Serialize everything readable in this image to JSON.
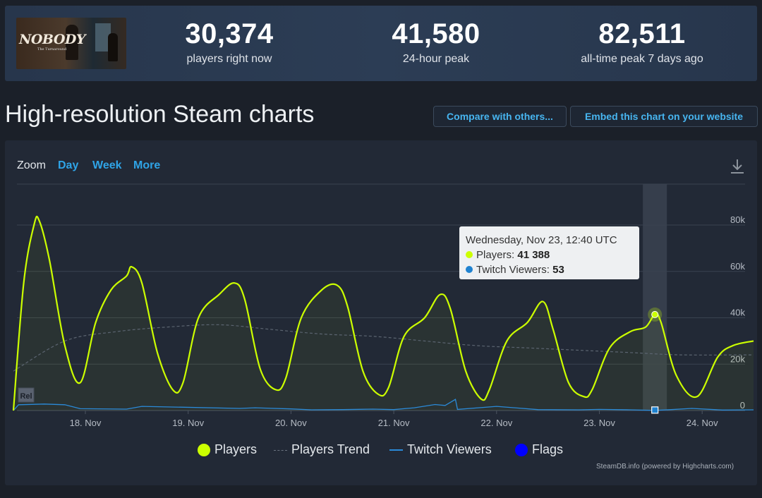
{
  "header": {
    "game_logo_text": "NOBODY",
    "game_logo_subtitle": "The Turnaround",
    "stats": [
      {
        "value": "30,374",
        "label": "players right now"
      },
      {
        "value": "41,580",
        "label": "24-hour peak"
      },
      {
        "value": "82,511",
        "label": "all-time peak 7 days ago"
      }
    ]
  },
  "section": {
    "title": "High-resolution Steam charts",
    "compare_button": "Compare with others...",
    "embed_button": "Embed this chart on your website"
  },
  "zoom": {
    "label": "Zoom",
    "options": [
      "Day",
      "Week",
      "More"
    ]
  },
  "tooltip": {
    "title": "Wednesday, Nov 23, 12:40 UTC",
    "players_label": "Players:",
    "players_value": "41 388",
    "twitch_label": "Twitch Viewers:",
    "twitch_value": "53"
  },
  "flag_label": "Rel",
  "legend": [
    {
      "name": "Players",
      "symbol": "circle"
    },
    {
      "name": "Players Trend",
      "symbol": "dash"
    },
    {
      "name": "Twitch Viewers",
      "symbol": "line"
    },
    {
      "name": "Flags",
      "symbol": "circle"
    }
  ],
  "credits": "SteamDB.info (powered by Highcharts.com)",
  "colors": {
    "players": "#ccff00",
    "trend": "#5b6470",
    "twitch": "#2a8ad8",
    "flags": "#0000ff",
    "highlight_band": "#3a4250"
  },
  "icons": {
    "download": "download-icon"
  },
  "chart_data": {
    "type": "line",
    "x_unit": "date (Nov 2022, UTC)",
    "x_ticks": [
      "18. Nov",
      "19. Nov",
      "20. Nov",
      "21. Nov",
      "22. Nov",
      "23. Nov",
      "24. Nov"
    ],
    "y_ticks": [
      "0",
      "20k",
      "40k",
      "60k",
      "80k"
    ],
    "ylim": [
      0,
      90000
    ],
    "xlim_days": [
      17.3,
      24.5
    ],
    "legend_position": "bottom",
    "highlight": {
      "x_day": 23.54,
      "players": 41388,
      "twitch": 53
    },
    "series": [
      {
        "name": "Players",
        "x_day": [
          17.3,
          17.4,
          17.5,
          17.55,
          17.65,
          17.8,
          17.95,
          18.1,
          18.25,
          18.4,
          18.45,
          18.55,
          18.7,
          18.85,
          18.95,
          19.1,
          19.3,
          19.45,
          19.55,
          19.7,
          19.85,
          19.95,
          20.1,
          20.3,
          20.45,
          20.55,
          20.7,
          20.85,
          20.95,
          21.1,
          21.3,
          21.45,
          21.55,
          21.7,
          21.85,
          21.93,
          22.1,
          22.3,
          22.45,
          22.55,
          22.7,
          22.85,
          22.93,
          23.1,
          23.3,
          23.45,
          23.54,
          23.6,
          23.75,
          23.95,
          24.15,
          24.3,
          24.5
        ],
        "values": [
          0,
          55000,
          80000,
          82000,
          65000,
          28000,
          12000,
          38000,
          52000,
          58000,
          62000,
          55000,
          25000,
          9000,
          12000,
          40000,
          50000,
          55000,
          48000,
          18000,
          9000,
          14000,
          40000,
          52000,
          54000,
          45000,
          17000,
          7000,
          10000,
          32000,
          40000,
          50000,
          44000,
          17000,
          5000,
          9000,
          30000,
          38000,
          47000,
          35000,
          12000,
          6000,
          9000,
          27000,
          34000,
          36000,
          41388,
          38000,
          15000,
          6000,
          23000,
          28000,
          30000
        ]
      },
      {
        "name": "Players Trend",
        "x_day": [
          17.3,
          17.8,
          18.3,
          18.8,
          19.3,
          19.8,
          20.3,
          20.8,
          21.3,
          21.8,
          22.3,
          22.8,
          23.3,
          23.8,
          24.5
        ],
        "values": [
          17000,
          30000,
          34000,
          36000,
          37000,
          35000,
          33000,
          32000,
          30000,
          28000,
          27000,
          26000,
          25000,
          24000,
          24000
        ]
      },
      {
        "name": "Twitch Viewers",
        "x_day": [
          17.3,
          17.35,
          17.6,
          17.8,
          17.95,
          18.4,
          18.55,
          19.5,
          19.65,
          20.0,
          20.2,
          20.5,
          20.8,
          21.0,
          21.2,
          21.4,
          21.5,
          21.6,
          21.62,
          22.0,
          22.2,
          22.4,
          22.8,
          23.0,
          23.3,
          23.54,
          23.7,
          23.9,
          24.2,
          24.5
        ],
        "values": [
          0,
          2500,
          2800,
          2500,
          800,
          600,
          1800,
          900,
          1200,
          700,
          300,
          400,
          600,
          400,
          1200,
          2600,
          2200,
          4800,
          500,
          1800,
          1100,
          400,
          300,
          500,
          300,
          53,
          400,
          900,
          200,
          300
        ]
      }
    ]
  }
}
